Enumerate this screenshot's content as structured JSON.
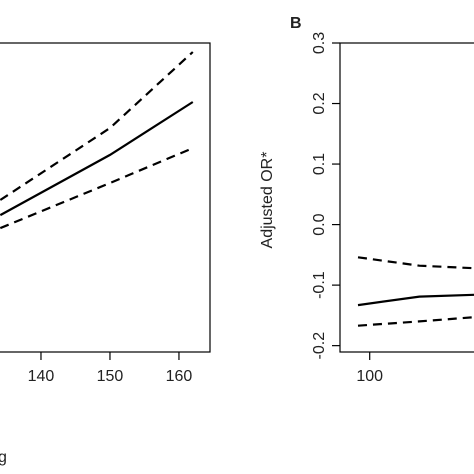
{
  "chart_data": [
    {
      "type": "line",
      "x_label": "g",
      "x": [
        134.1,
        150,
        162
      ],
      "xlim": [
        134.06,
        164.5
      ],
      "xticks": [
        140,
        150,
        160
      ],
      "ylim": [
        0,
        1
      ],
      "series": [
        {
          "name": "estimate",
          "color": "#000000",
          "dash": false,
          "values": [
            0.443,
            0.638,
            0.809
          ]
        },
        {
          "name": "upper",
          "color": "#000000",
          "dash": true,
          "values": [
            0.492,
            0.725,
            0.971
          ]
        },
        {
          "name": "lower",
          "color": "#000000",
          "dash": true,
          "values": [
            0.401,
            0.547,
            0.66
          ]
        }
      ]
    },
    {
      "type": "line",
      "panel_label": "B",
      "y_label": "Adjusted OR*",
      "x": [
        98.3,
        107.2,
        115.1
      ],
      "xlim": [
        95.7,
        115.1
      ],
      "xticks": [
        100
      ],
      "ylim": [
        -0.2105,
        0.3
      ],
      "yticks": [
        {
          "value": 0.3,
          "label": "0.3"
        },
        {
          "value": 0.2,
          "label": "0.2"
        },
        {
          "value": 0.1,
          "label": "0.1"
        },
        {
          "value": 0.0,
          "label": "0.0"
        },
        {
          "value": -0.1,
          "label": "-0.1"
        },
        {
          "value": -0.2,
          "label": "-0.2"
        }
      ],
      "series": [
        {
          "name": "estimate",
          "color": "#000000",
          "dash": false,
          "values": [
            -0.133,
            -0.119,
            -0.116
          ]
        },
        {
          "name": "upper",
          "color": "#000000",
          "dash": true,
          "values": [
            -0.054,
            -0.068,
            -0.072
          ]
        },
        {
          "name": "lower",
          "color": "#000000",
          "dash": true,
          "values": [
            -0.167,
            -0.16,
            -0.153
          ]
        }
      ]
    }
  ]
}
